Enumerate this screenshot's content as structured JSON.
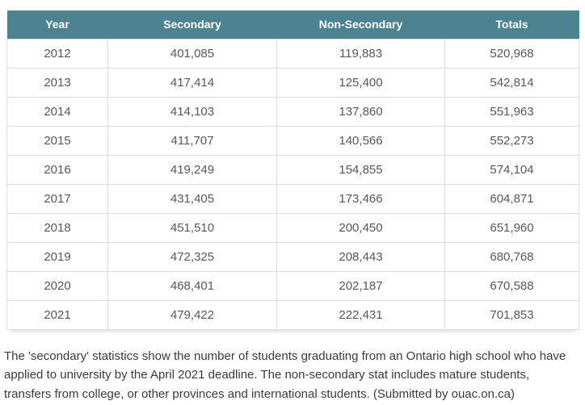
{
  "colors": {
    "header_bg": "#4d8291",
    "header_text": "#ffffff",
    "body_text": "#575757",
    "border": "#dcdcdc",
    "caption_text": "#3a3a3a",
    "page_bg": "#ffffff"
  },
  "chart_data": {
    "type": "table",
    "title": "",
    "columns": [
      "Year",
      "Secondary",
      "Non-Secondary",
      "Totals"
    ],
    "rows": [
      [
        "2012",
        "401,085",
        "119,883",
        "520,968"
      ],
      [
        "2013",
        "417,414",
        "125,400",
        "542,814"
      ],
      [
        "2014",
        "414,103",
        "137,860",
        "551,963"
      ],
      [
        "2015",
        "411,707",
        "140,566",
        "552,273"
      ],
      [
        "2016",
        "419,249",
        "154,855",
        "574,104"
      ],
      [
        "2017",
        "431,405",
        "173,466",
        "604,871"
      ],
      [
        "2018",
        "451,510",
        "200,450",
        "651,960"
      ],
      [
        "2019",
        "472,325",
        "208,443",
        "680,768"
      ],
      [
        "2020",
        "468,401",
        "202,187",
        "670,588"
      ],
      [
        "2021",
        "479,422",
        "222,431",
        "701,853"
      ]
    ]
  },
  "caption": "The 'secondary' statistics show the number of students graduating from an Ontario high school who have applied to university by the April 2021 deadline. The non-secondary stat includes mature students, transfers from college, or other provinces and international students. (Submitted by ouac.on.ca)"
}
